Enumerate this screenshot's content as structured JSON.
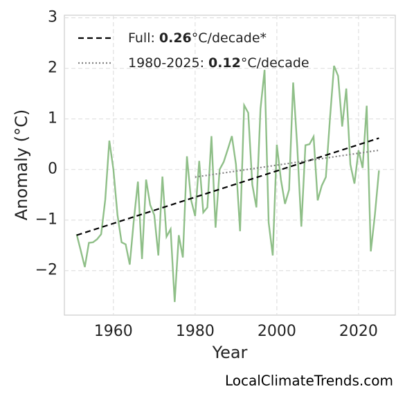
{
  "chart_data": {
    "type": "line",
    "xlabel": "Year",
    "ylabel": "Anomaly (°C)",
    "footer": "LocalClimateTrends.com",
    "xlim": [
      1948,
      2029
    ],
    "ylim": [
      -2.88,
      3.05
    ],
    "xticks": [
      1960,
      1980,
      2000,
      2020
    ],
    "yticks": [
      {
        "value": -2,
        "label": "−2"
      },
      {
        "value": -1,
        "label": "−1"
      },
      0,
      1,
      2,
      3
    ],
    "grid": true,
    "legend": "upper left",
    "x": [
      1951,
      1952,
      1953,
      1954,
      1955,
      1956,
      1957,
      1958,
      1959,
      1960,
      1961,
      1962,
      1963,
      1964,
      1965,
      1966,
      1967,
      1968,
      1969,
      1970,
      1971,
      1972,
      1973,
      1974,
      1975,
      1976,
      1977,
      1978,
      1979,
      1980,
      1981,
      1982,
      1983,
      1984,
      1985,
      1986,
      1987,
      1988,
      1989,
      1990,
      1991,
      1992,
      1993,
      1994,
      1995,
      1996,
      1997,
      1998,
      1999,
      2000,
      2001,
      2002,
      2003,
      2004,
      2005,
      2006,
      2007,
      2008,
      2009,
      2010,
      2011,
      2012,
      2013,
      2014,
      2015,
      2016,
      2017,
      2018,
      2019,
      2020,
      2021,
      2022,
      2023,
      2024,
      2025
    ],
    "series": [
      {
        "color": "#8fbf88",
        "values": [
          -1.28,
          -1.6,
          -1.93,
          -1.45,
          -1.44,
          -1.38,
          -1.28,
          -0.6,
          0.57,
          0.0,
          -0.9,
          -1.44,
          -1.48,
          -1.88,
          -1.0,
          -0.24,
          -1.77,
          -0.2,
          -0.7,
          -0.9,
          -1.7,
          -0.14,
          -1.33,
          -1.18,
          -2.62,
          -1.3,
          -1.74,
          0.26,
          -0.6,
          -0.92,
          0.17,
          -0.85,
          -0.75,
          0.66,
          -1.15,
          0.0,
          0.15,
          0.4,
          0.66,
          0.1,
          -1.22,
          1.27,
          1.12,
          -0.3,
          -0.75,
          1.2,
          1.97,
          -1.05,
          -1.7,
          0.49,
          -0.2,
          -0.68,
          -0.4,
          1.72,
          0.45,
          -1.13,
          0.48,
          0.5,
          0.65,
          -0.61,
          -0.32,
          -0.15,
          1.0,
          2.05,
          1.85,
          0.85,
          1.6,
          0.1,
          -0.28,
          0.38,
          0.03,
          1.26,
          -1.62,
          -0.9,
          -0.02
        ]
      },
      {
        "name": "Full:",
        "slope": 0.26,
        "unit": "°C/decade*",
        "color": "#000000",
        "dash": "8,5",
        "x": [
          1951,
          2025
        ],
        "values": [
          -1.3,
          0.62
        ]
      },
      {
        "name": "1980-2025:",
        "slope": 0.12,
        "unit": "°C/decade",
        "color": "#808080",
        "dash": "2,3",
        "x": [
          1980,
          2025
        ],
        "values": [
          -0.15,
          0.38
        ]
      }
    ]
  }
}
